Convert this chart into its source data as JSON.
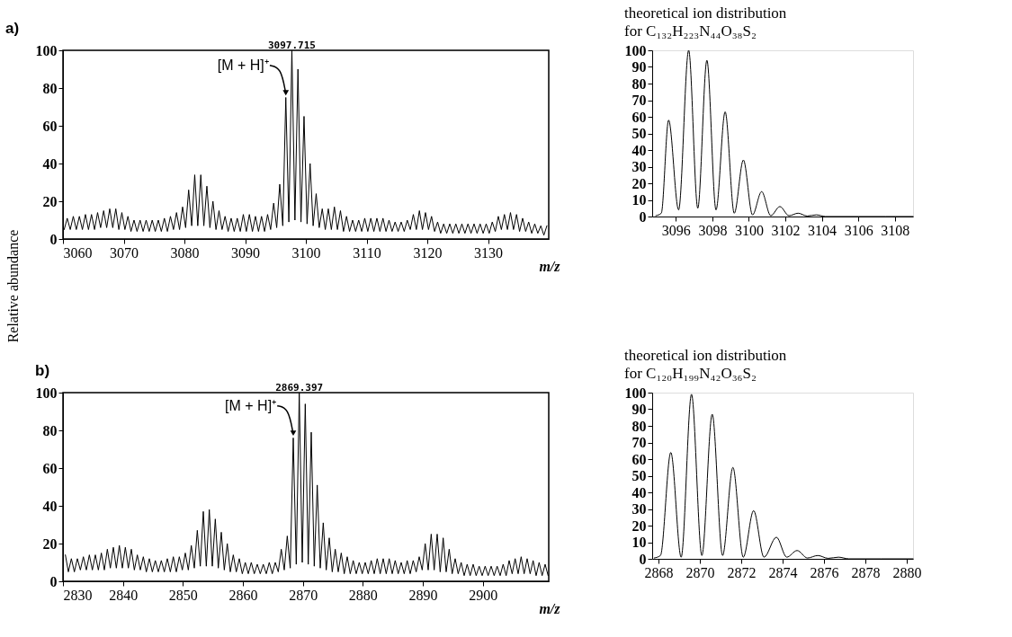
{
  "chart_data": [
    {
      "type": "line",
      "title": "a)",
      "xlabel": "m/z",
      "ylabel": "Relative abundance",
      "color": "#000000",
      "xlim": [
        3060,
        3140
      ],
      "ylim": [
        0,
        100
      ],
      "xticks": [
        3060,
        3070,
        3080,
        3090,
        3100,
        3110,
        3120,
        3130
      ],
      "yticks": [
        0,
        20,
        40,
        60,
        80,
        100
      ],
      "x": [
        3060.2,
        3060.7,
        3061.2,
        3061.7,
        3062.2,
        3062.7,
        3063.2,
        3063.7,
        3064.2,
        3064.7,
        3065.2,
        3065.7,
        3066.2,
        3066.7,
        3067.2,
        3067.7,
        3068.2,
        3068.7,
        3069.2,
        3069.7,
        3070.2,
        3070.7,
        3071.2,
        3071.7,
        3072.2,
        3072.7,
        3073.2,
        3073.7,
        3074.2,
        3074.7,
        3075.2,
        3075.7,
        3076.2,
        3076.7,
        3077.2,
        3077.7,
        3078.2,
        3078.7,
        3079.2,
        3079.7,
        3080.2,
        3080.7,
        3081.2,
        3081.7,
        3082.2,
        3082.7,
        3083.2,
        3083.7,
        3084.2,
        3084.7,
        3085.2,
        3085.7,
        3086.2,
        3086.7,
        3087.2,
        3087.7,
        3088.2,
        3088.7,
        3089.2,
        3089.7,
        3090.2,
        3090.7,
        3091.2,
        3091.7,
        3092.2,
        3092.7,
        3093.2,
        3093.7,
        3094.2,
        3094.7,
        3095.2,
        3095.7,
        3096.2,
        3096.7,
        3097.2,
        3097.7,
        3098.2,
        3098.7,
        3099.2,
        3099.7,
        3100.2,
        3100.7,
        3101.2,
        3101.7,
        3102.2,
        3102.7,
        3103.2,
        3103.7,
        3104.2,
        3104.7,
        3105.2,
        3105.7,
        3106.2,
        3106.7,
        3107.2,
        3107.7,
        3108.2,
        3108.7,
        3109.2,
        3109.7,
        3110.2,
        3110.7,
        3111.2,
        3111.7,
        3112.2,
        3112.7,
        3113.2,
        3113.7,
        3114.2,
        3114.7,
        3115.2,
        3115.7,
        3116.2,
        3116.7,
        3117.2,
        3117.7,
        3118.2,
        3118.7,
        3119.2,
        3119.7,
        3120.2,
        3120.7,
        3121.2,
        3121.7,
        3122.2,
        3122.7,
        3123.2,
        3123.7,
        3124.2,
        3124.7,
        3125.2,
        3125.7,
        3126.2,
        3126.7,
        3127.2,
        3127.7,
        3128.2,
        3128.7,
        3129.2,
        3129.7,
        3130.2,
        3130.7,
        3131.2,
        3131.7,
        3132.2,
        3132.7,
        3133.2,
        3133.7,
        3134.2,
        3134.7,
        3135.2,
        3135.7,
        3136.2,
        3136.7,
        3137.2,
        3137.7,
        3138.2,
        3138.7,
        3139.2,
        3139.7
      ],
      "values": [
        5,
        11,
        5,
        12,
        5,
        12,
        5,
        13,
        5,
        13,
        5,
        14,
        6,
        15,
        6,
        16,
        6,
        16,
        5,
        14,
        5,
        12,
        4,
        10,
        4,
        10,
        4,
        10,
        4,
        10,
        4,
        10,
        4,
        11,
        4,
        12,
        5,
        14,
        5,
        17,
        6,
        26,
        7,
        34,
        7,
        34,
        7,
        28,
        6,
        20,
        5,
        15,
        5,
        12,
        4,
        11,
        4,
        11,
        4,
        13,
        4,
        13,
        4,
        12,
        4,
        12,
        4,
        13,
        5,
        19,
        6,
        29,
        7,
        75,
        9,
        100,
        10,
        90,
        9,
        65,
        8,
        40,
        7,
        24,
        6,
        16,
        5,
        16,
        5,
        17,
        5,
        15,
        4,
        12,
        4,
        10,
        4,
        10,
        4,
        11,
        4,
        11,
        4,
        11,
        4,
        11,
        4,
        10,
        4,
        9,
        4,
        9,
        4,
        10,
        5,
        13,
        5,
        15,
        5,
        14,
        5,
        12,
        4,
        9,
        3,
        8,
        3,
        8,
        3,
        8,
        3,
        8,
        3,
        8,
        3,
        8,
        3,
        8,
        3,
        8,
        3,
        9,
        4,
        12,
        5,
        13,
        5,
        14,
        5,
        13,
        4,
        11,
        4,
        9,
        3,
        8,
        3,
        7,
        2,
        7
      ],
      "annotations": [
        {
          "text": "[M + H]⁺",
          "x": 3096.7,
          "y": 75
        },
        {
          "text": "3097.715",
          "x": 3097.7,
          "y": 100
        }
      ]
    },
    {
      "type": "line",
      "title": "theoretical ion distribution",
      "subtitle": "for C₁₃₂H₂₂₃N₄₄O₃₈S₂",
      "color": "#000000",
      "xlim": [
        3094.7,
        3109
      ],
      "ylim": [
        0,
        100
      ],
      "xticks": [
        3096,
        3098,
        3100,
        3102,
        3104,
        3106,
        3108
      ],
      "yticks": [
        0,
        10,
        20,
        30,
        40,
        50,
        60,
        70,
        80,
        90,
        100
      ],
      "x": [
        3094.9,
        3095.2,
        3095.6,
        3096.15,
        3096.7,
        3097.2,
        3097.7,
        3098.2,
        3098.7,
        3099.2,
        3099.7,
        3100.2,
        3100.7,
        3101.2,
        3101.7,
        3102.2,
        3102.7,
        3103.2,
        3103.7,
        3104.2,
        3106,
        3109
      ],
      "values": [
        0.5,
        2,
        58,
        4,
        100,
        5,
        94,
        4,
        63,
        2,
        34,
        1,
        15,
        0.5,
        6,
        0.5,
        2,
        0.3,
        1,
        0,
        0,
        0
      ]
    },
    {
      "type": "line",
      "title": "b)",
      "xlabel": "m/z",
      "color": "#000000",
      "xlim": [
        2830,
        2911
      ],
      "ylim": [
        0,
        100
      ],
      "xticks": [
        2830,
        2840,
        2850,
        2860,
        2870,
        2880,
        2890,
        2900
      ],
      "yticks": [
        0,
        20,
        40,
        60,
        80,
        100
      ],
      "x": [
        2830.4,
        2830.9,
        2831.4,
        2831.9,
        2832.4,
        2832.9,
        2833.4,
        2833.9,
        2834.4,
        2834.9,
        2835.4,
        2835.9,
        2836.4,
        2836.9,
        2837.4,
        2837.9,
        2838.4,
        2838.9,
        2839.4,
        2839.9,
        2840.4,
        2840.9,
        2841.4,
        2841.9,
        2842.4,
        2842.9,
        2843.4,
        2843.9,
        2844.4,
        2844.9,
        2845.4,
        2845.9,
        2846.4,
        2846.9,
        2847.4,
        2847.9,
        2848.4,
        2848.9,
        2849.4,
        2849.9,
        2850.4,
        2850.9,
        2851.4,
        2851.9,
        2852.4,
        2852.9,
        2853.4,
        2853.9,
        2854.4,
        2854.9,
        2855.4,
        2855.9,
        2856.4,
        2856.9,
        2857.4,
        2857.9,
        2858.4,
        2858.9,
        2859.4,
        2859.9,
        2860.4,
        2860.9,
        2861.4,
        2861.9,
        2862.4,
        2862.9,
        2863.4,
        2863.9,
        2864.4,
        2864.9,
        2865.4,
        2865.9,
        2866.4,
        2866.9,
        2867.4,
        2867.9,
        2868.4,
        2868.9,
        2869.4,
        2869.9,
        2870.4,
        2870.9,
        2871.4,
        2871.9,
        2872.4,
        2872.9,
        2873.4,
        2873.9,
        2874.4,
        2874.9,
        2875.4,
        2875.9,
        2876.4,
        2876.9,
        2877.4,
        2877.9,
        2878.4,
        2878.9,
        2879.4,
        2879.9,
        2880.4,
        2880.9,
        2881.4,
        2881.9,
        2882.4,
        2882.9,
        2883.4,
        2883.9,
        2884.4,
        2884.9,
        2885.4,
        2885.9,
        2886.4,
        2886.9,
        2887.4,
        2887.9,
        2888.4,
        2888.9,
        2889.4,
        2889.9,
        2890.4,
        2890.9,
        2891.4,
        2891.9,
        2892.4,
        2892.9,
        2893.4,
        2893.9,
        2894.4,
        2894.9,
        2895.4,
        2895.9,
        2896.4,
        2896.9,
        2897.4,
        2897.9,
        2898.4,
        2898.9,
        2899.4,
        2899.9,
        2900.4,
        2900.9,
        2901.4,
        2901.9,
        2902.4,
        2902.9,
        2903.4,
        2903.9,
        2904.4,
        2904.9,
        2905.4,
        2905.9,
        2906.4,
        2906.9,
        2907.4,
        2907.9,
        2908.4,
        2908.9,
        2909.4,
        2909.9,
        2910.4,
        2910.9
      ],
      "values": [
        14,
        5,
        12,
        5,
        12,
        6,
        13,
        6,
        14,
        6,
        14,
        6,
        15,
        6,
        17,
        7,
        18,
        7,
        19,
        7,
        18,
        7,
        17,
        6,
        14,
        6,
        13,
        5,
        12,
        5,
        11,
        5,
        11,
        5,
        12,
        5,
        13,
        5,
        13,
        6,
        15,
        6,
        19,
        7,
        27,
        8,
        37,
        8,
        38,
        8,
        33,
        7,
        26,
        6,
        20,
        5,
        14,
        5,
        12,
        4,
        10,
        4,
        10,
        4,
        9,
        4,
        9,
        4,
        10,
        4,
        10,
        5,
        17,
        6,
        24,
        7,
        76,
        9,
        100,
        10,
        94,
        9,
        79,
        8,
        51,
        7,
        31,
        6,
        23,
        5,
        17,
        5,
        15,
        4,
        13,
        4,
        11,
        4,
        10,
        4,
        10,
        4,
        11,
        4,
        12,
        4,
        12,
        4,
        12,
        4,
        11,
        4,
        10,
        4,
        11,
        4,
        11,
        5,
        13,
        6,
        20,
        6,
        25,
        6,
        25,
        5,
        23,
        5,
        17,
        4,
        12,
        4,
        10,
        3,
        9,
        3,
        9,
        3,
        8,
        3,
        8,
        3,
        8,
        3,
        8,
        3,
        9,
        3,
        11,
        4,
        12,
        4,
        13,
        4,
        12,
        4,
        11,
        3,
        10,
        3,
        9,
        3
      ],
      "annotations": [
        {
          "text": "[M + H]⁺",
          "x": 2868.4,
          "y": 76
        },
        {
          "text": "2869.397",
          "x": 2869.4,
          "y": 100
        }
      ]
    },
    {
      "type": "line",
      "title": "theoretical ion distribution",
      "subtitle": "for C₁₂₀H₁₉₉N₄₂O₃₆S₂",
      "color": "#000000",
      "xlim": [
        2867.7,
        2880.3
      ],
      "ylim": [
        0,
        100
      ],
      "xticks": [
        2868,
        2870,
        2872,
        2874,
        2876,
        2878,
        2880
      ],
      "yticks": [
        0,
        10,
        20,
        30,
        40,
        50,
        60,
        70,
        80,
        90,
        100
      ],
      "x": [
        2867.8,
        2868.1,
        2868.6,
        2869.1,
        2869.6,
        2870.1,
        2870.6,
        2871.1,
        2871.6,
        2872.1,
        2872.6,
        2873.1,
        2873.7,
        2874.2,
        2874.7,
        2875.2,
        2875.7,
        2876.2,
        2876.7,
        2877.2,
        2880.3
      ],
      "values": [
        0.5,
        2,
        64,
        1,
        99,
        2,
        87,
        2,
        55,
        1,
        29,
        1,
        13,
        1,
        5,
        0.5,
        2,
        0.3,
        1,
        0,
        0
      ]
    }
  ]
}
